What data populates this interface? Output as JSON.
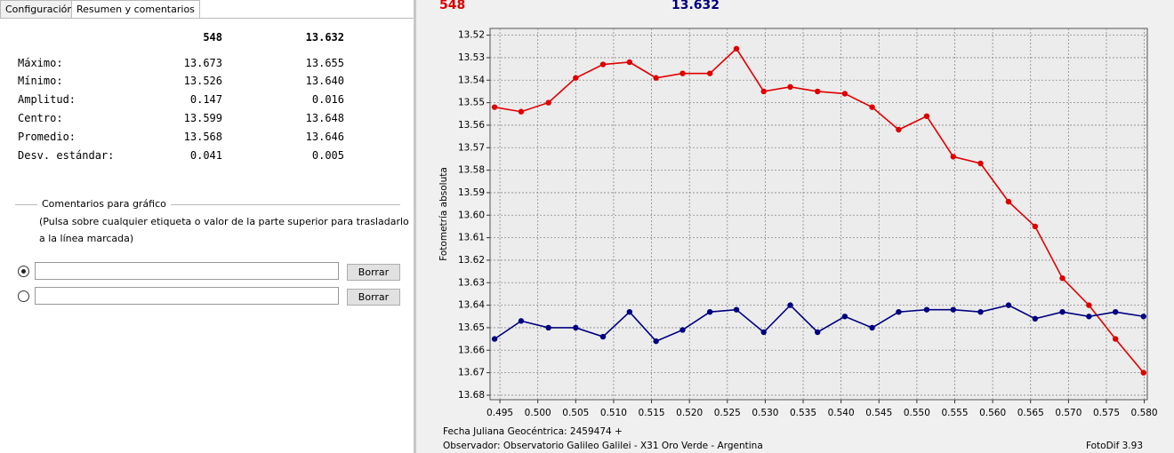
{
  "tabs": [
    "Configuración",
    "Resumen y comentarios"
  ],
  "summary": {
    "columns": [
      "548",
      "13.632"
    ],
    "rows": [
      {
        "label": "Máximo:",
        "values": [
          "13.673",
          "13.655"
        ]
      },
      {
        "label": "Mínimo:",
        "values": [
          "13.526",
          "13.640"
        ]
      },
      {
        "label": "Amplitud:",
        "values": [
          "0.147",
          "0.016"
        ]
      },
      {
        "label": "Centro:",
        "values": [
          "13.599",
          "13.648"
        ]
      },
      {
        "label": "Promedio:",
        "values": [
          "13.568",
          "13.646"
        ]
      },
      {
        "label": "Desv. estándar:",
        "values": [
          "0.041",
          "0.005"
        ]
      }
    ]
  },
  "comments": {
    "title": "Comentarios para gráfico",
    "hint_lines": [
      "(Pulsa sobre cualquier etiqueta o valor de la parte superior para trasladarlo",
      "a la línea marcada)"
    ],
    "buttons": [
      "Borrar",
      "Borrar"
    ]
  },
  "chart_data": {
    "type": "line",
    "y_label": "Fotometría absoluta",
    "x": [
      0.4943,
      0.4978,
      0.5014,
      0.505,
      0.5086,
      0.5121,
      0.5156,
      0.5191,
      0.5227,
      0.5262,
      0.5298,
      0.5333,
      0.5369,
      0.5405,
      0.5441,
      0.5476,
      0.5513,
      0.5548,
      0.5584,
      0.5621,
      0.5656,
      0.5692,
      0.5727,
      0.5762,
      0.5799
    ],
    "series": [
      {
        "name": "548",
        "color": "#e00000",
        "values": [
          13.552,
          13.554,
          13.55,
          13.539,
          13.533,
          13.532,
          13.539,
          13.537,
          13.537,
          13.526,
          13.545,
          13.543,
          13.545,
          13.546,
          13.552,
          13.562,
          13.556,
          13.574,
          13.577,
          13.594,
          13.605,
          13.628,
          13.64,
          13.655,
          13.67
        ]
      },
      {
        "name": "13.632",
        "color": "#000080",
        "values": [
          13.655,
          13.647,
          13.65,
          13.65,
          13.654,
          13.643,
          13.656,
          13.651,
          13.643,
          13.642,
          13.652,
          13.64,
          13.652,
          13.645,
          13.65,
          13.643,
          13.642,
          13.642,
          13.643,
          13.64,
          13.646,
          13.643,
          13.645,
          13.643,
          13.645
        ]
      }
    ],
    "xlim": [
      0.4937,
      0.5804
    ],
    "xticks": [
      0.495,
      {
        "value": 0.5,
        "label": "0.500"
      },
      0.505,
      {
        "value": 0.51,
        "label": "0.510"
      },
      0.515,
      {
        "value": 0.52,
        "label": "0.520"
      },
      0.525,
      {
        "value": 0.53,
        "label": "0.530"
      },
      0.535,
      {
        "value": 0.54,
        "label": "0.540"
      },
      0.545,
      {
        "value": 0.55,
        "label": "0.550"
      },
      0.555,
      {
        "value": 0.56,
        "label": "0.560"
      },
      0.565,
      {
        "value": 0.57,
        "label": "0.570"
      },
      0.575,
      {
        "value": 0.58,
        "label": "0.580"
      }
    ],
    "ylim": [
      13.517,
      13.682
    ],
    "y_reversed": true,
    "yticks": [
      13.52,
      13.53,
      13.54,
      13.55,
      13.56,
      13.57,
      13.58,
      13.59,
      {
        "value": 13.6,
        "label": "13.60"
      },
      13.61,
      13.62,
      13.63,
      13.64,
      13.65,
      13.66,
      13.67,
      13.68
    ],
    "grid": true
  },
  "footer": {
    "date": "Fecha Juliana Geocéntrica: 2459474 +",
    "observer": "Observador: Observatorio Galileo Galilei - X31 Oro Verde - Argentina",
    "software": "FotoDif 3.93"
  }
}
